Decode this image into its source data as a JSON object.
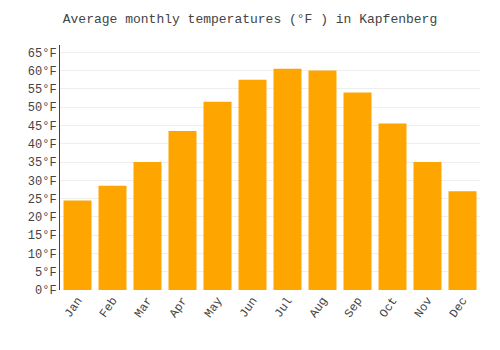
{
  "chart_data": {
    "type": "bar",
    "title": "Average monthly temperatures (°F ) in Kapfenberg",
    "categories": [
      "Jan",
      "Feb",
      "Mar",
      "Apr",
      "May",
      "Jun",
      "Jul",
      "Aug",
      "Sep",
      "Oct",
      "Nov",
      "Dec"
    ],
    "values": [
      24.5,
      28.5,
      35.0,
      43.5,
      51.5,
      57.5,
      60.5,
      60.0,
      54.0,
      45.5,
      35.0,
      27.0
    ],
    "color": "#FFA500",
    "ylim": [
      0,
      67
    ],
    "yticks": [
      {
        "value": 0,
        "label": "0°F"
      },
      {
        "value": 5,
        "label": "5°F"
      },
      {
        "value": 10,
        "label": "10°F"
      },
      {
        "value": 15,
        "label": "15°F"
      },
      {
        "value": 20,
        "label": "20°F"
      },
      {
        "value": 25,
        "label": "25°F"
      },
      {
        "value": 30,
        "label": "30°F"
      },
      {
        "value": 35,
        "label": "35°F"
      },
      {
        "value": 40,
        "label": "40°F"
      },
      {
        "value": 45,
        "label": "45°F"
      },
      {
        "value": 50,
        "label": "50°F"
      },
      {
        "value": 55,
        "label": "55°F"
      },
      {
        "value": 60,
        "label": "60°F"
      },
      {
        "value": 65,
        "label": "65°F"
      }
    ],
    "grid": true
  }
}
